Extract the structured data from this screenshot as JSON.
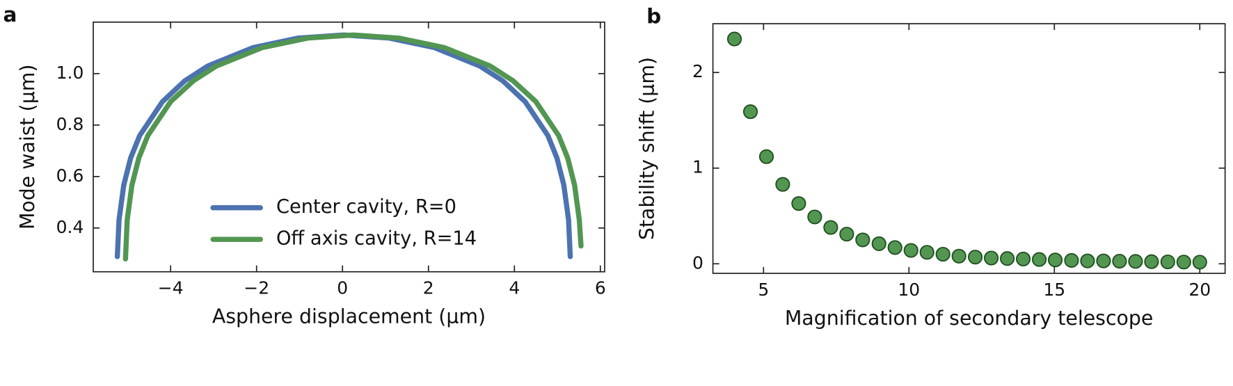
{
  "chart_data": [
    {
      "type": "line",
      "panel_label": "a",
      "x_label": "Asphere displacement (µm)",
      "y_label": "Mode waist (µm)",
      "xlim": [
        -5.8,
        6.1
      ],
      "ylim": [
        0.23,
        1.2
      ],
      "xticks": [
        {
          "value": -4,
          "label": "−4"
        },
        {
          "value": -2,
          "label": "−2"
        },
        0,
        2,
        4,
        6
      ],
      "yticks": [
        0.4,
        0.6,
        0.8,
        {
          "value": 1,
          "label": "1.0"
        }
      ],
      "legend": "lower center",
      "series": [
        {
          "name": "Center cavity, R=0",
          "color": "#4c72b0",
          "x": [
            -5.24,
            -5.2,
            -5.09,
            -4.93,
            -4.72,
            -4.19,
            -3.67,
            -3.14,
            -2.08,
            -1.03,
            0.03,
            1.09,
            2.14,
            3.2,
            3.73,
            4.25,
            4.78,
            4.99,
            5.15,
            5.26,
            5.3
          ],
          "values": [
            0.289,
            0.432,
            0.567,
            0.672,
            0.759,
            0.891,
            0.972,
            1.029,
            1.101,
            1.138,
            1.15,
            1.138,
            1.101,
            1.029,
            0.972,
            0.891,
            0.759,
            0.672,
            0.567,
            0.432,
            0.289
          ]
        },
        {
          "name": "Off axis cavity, R=14",
          "color": "#529652",
          "x": [
            -5.05,
            -5.01,
            -4.9,
            -4.74,
            -4.53,
            -4.0,
            -3.47,
            -2.94,
            -1.87,
            -0.81,
            0.25,
            1.31,
            2.37,
            3.44,
            3.97,
            4.5,
            5.03,
            5.24,
            5.4,
            5.51,
            5.55
          ],
          "values": [
            0.28,
            0.432,
            0.567,
            0.672,
            0.759,
            0.891,
            0.972,
            1.029,
            1.101,
            1.138,
            1.15,
            1.138,
            1.101,
            1.029,
            0.972,
            0.891,
            0.759,
            0.672,
            0.567,
            0.432,
            0.33
          ]
        }
      ]
    },
    {
      "type": "scatter",
      "panel_label": "b",
      "x_label": "Magnification of secondary telescope",
      "y_label": "Stability shift (µm)",
      "xlim": [
        3.26,
        20.87
      ],
      "ylim": [
        -0.1,
        2.51
      ],
      "xticks": [
        5,
        10,
        15,
        20
      ],
      "yticks": [
        0,
        1,
        2
      ],
      "color": "#529652",
      "edge_color": "#1e4d1e",
      "x": [
        4,
        4.55,
        5.1,
        5.66,
        6.21,
        6.76,
        7.31,
        7.86,
        8.41,
        8.97,
        9.52,
        10.07,
        10.62,
        11.17,
        11.72,
        12.28,
        12.83,
        13.38,
        13.93,
        14.48,
        15.03,
        15.59,
        16.14,
        16.69,
        17.24,
        17.79,
        18.34,
        18.9,
        19.45,
        20
      ],
      "values": [
        2.35,
        1.59,
        1.12,
        0.83,
        0.63,
        0.49,
        0.38,
        0.31,
        0.25,
        0.21,
        0.17,
        0.14,
        0.12,
        0.1,
        0.08,
        0.07,
        0.06,
        0.055,
        0.05,
        0.045,
        0.04,
        0.035,
        0.03,
        0.03,
        0.027,
        0.025,
        0.022,
        0.02,
        0.018,
        0.017
      ]
    }
  ]
}
